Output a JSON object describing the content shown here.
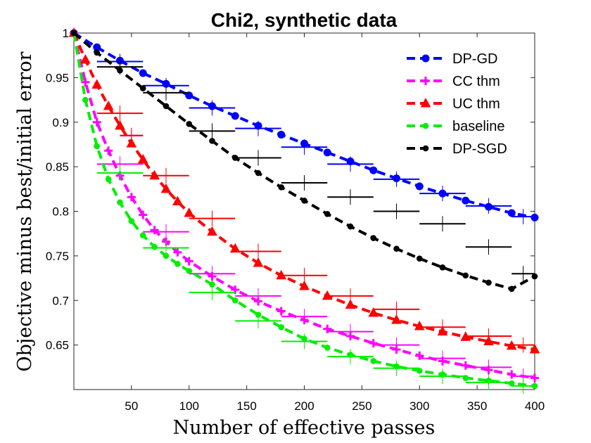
{
  "chart_data": {
    "type": "line",
    "title": "Chi2, synthetic data",
    "xlabel": "Number of effective passes",
    "ylabel": "Objective minus best/initial error",
    "xlim": [
      0,
      400
    ],
    "ylim": [
      0.6,
      1.0
    ],
    "xticks": [
      50,
      100,
      150,
      200,
      250,
      300,
      350,
      400
    ],
    "yticks": [
      0.65,
      0.7,
      0.75,
      0.8,
      0.85,
      0.9,
      0.95,
      1
    ],
    "xtick_labels": [
      "50",
      "100",
      "150",
      "200",
      "250",
      "300",
      "350",
      "400"
    ],
    "ytick_labels": [
      "0.65",
      "0.7",
      "0.75",
      "0.8",
      "0.85",
      "0.9",
      "0.95",
      "1"
    ],
    "legend_position": "top-right",
    "series": [
      {
        "name": "DP-GD",
        "color": "#0000ff",
        "marker": "circle",
        "x": [
          0,
          20,
          40,
          60,
          80,
          100,
          120,
          140,
          160,
          180,
          200,
          220,
          240,
          260,
          280,
          300,
          320,
          340,
          360,
          380,
          400
        ],
        "y": [
          1.0,
          0.984,
          0.969,
          0.955,
          0.943,
          0.93,
          0.918,
          0.907,
          0.896,
          0.886,
          0.876,
          0.866,
          0.856,
          0.846,
          0.837,
          0.828,
          0.82,
          0.812,
          0.805,
          0.798,
          0.793
        ],
        "bars": [
          [
            20,
            60,
            0.968
          ],
          [
            60,
            100,
            0.941
          ],
          [
            100,
            140,
            0.916
          ],
          [
            140,
            180,
            0.893
          ],
          [
            180,
            220,
            0.872
          ],
          [
            220,
            260,
            0.853
          ],
          [
            260,
            300,
            0.836
          ],
          [
            300,
            340,
            0.82
          ],
          [
            340,
            380,
            0.806
          ],
          [
            380,
            400,
            0.794
          ]
        ]
      },
      {
        "name": "CC thm",
        "color": "#ff00ff",
        "marker": "plus",
        "x": [
          0,
          10,
          20,
          30,
          40,
          50,
          60,
          70,
          80,
          90,
          100,
          120,
          140,
          160,
          180,
          200,
          220,
          240,
          260,
          280,
          300,
          320,
          340,
          360,
          380,
          400
        ],
        "y": [
          1.0,
          0.945,
          0.9,
          0.868,
          0.84,
          0.816,
          0.796,
          0.779,
          0.766,
          0.754,
          0.744,
          0.727,
          0.712,
          0.699,
          0.688,
          0.678,
          0.668,
          0.66,
          0.652,
          0.645,
          0.638,
          0.632,
          0.627,
          0.622,
          0.617,
          0.613
        ],
        "bars": [
          [
            20,
            60,
            0.853
          ],
          [
            40,
            60,
            0.885
          ],
          [
            60,
            100,
            0.777
          ],
          [
            100,
            140,
            0.73
          ],
          [
            140,
            180,
            0.705
          ],
          [
            180,
            220,
            0.682
          ],
          [
            220,
            260,
            0.665
          ],
          [
            260,
            300,
            0.65
          ],
          [
            300,
            340,
            0.635
          ],
          [
            340,
            380,
            0.625
          ],
          [
            380,
            400,
            0.615
          ]
        ]
      },
      {
        "name": "UC thm",
        "color": "#ff0000",
        "marker": "triangle",
        "x": [
          0,
          10,
          20,
          30,
          40,
          50,
          60,
          70,
          80,
          90,
          100,
          120,
          140,
          160,
          180,
          200,
          220,
          240,
          260,
          280,
          300,
          320,
          340,
          360,
          380,
          400
        ],
        "y": [
          1.0,
          0.97,
          0.942,
          0.918,
          0.896,
          0.876,
          0.858,
          0.84,
          0.825,
          0.811,
          0.798,
          0.777,
          0.758,
          0.742,
          0.728,
          0.716,
          0.705,
          0.695,
          0.686,
          0.678,
          0.671,
          0.665,
          0.659,
          0.654,
          0.649,
          0.645
        ],
        "bars": [
          [
            20,
            60,
            0.91
          ],
          [
            40,
            60,
            0.885
          ],
          [
            60,
            100,
            0.84
          ],
          [
            100,
            140,
            0.792
          ],
          [
            140,
            180,
            0.755
          ],
          [
            180,
            220,
            0.728
          ],
          [
            220,
            260,
            0.705
          ],
          [
            260,
            300,
            0.69
          ],
          [
            300,
            340,
            0.67
          ],
          [
            340,
            380,
            0.66
          ],
          [
            380,
            400,
            0.65
          ]
        ]
      },
      {
        "name": "baseline",
        "color": "#00ee00",
        "marker": "dot",
        "x": [
          0,
          10,
          20,
          30,
          40,
          50,
          60,
          70,
          80,
          90,
          100,
          120,
          140,
          160,
          180,
          200,
          220,
          240,
          260,
          280,
          300,
          320,
          340,
          360,
          380,
          400
        ],
        "y": [
          1.0,
          0.925,
          0.873,
          0.836,
          0.81,
          0.789,
          0.773,
          0.76,
          0.75,
          0.741,
          0.733,
          0.718,
          0.7,
          0.684,
          0.67,
          0.657,
          0.647,
          0.639,
          0.632,
          0.626,
          0.621,
          0.617,
          0.613,
          0.61,
          0.607,
          0.604
        ],
        "bars": [
          [
            20,
            60,
            0.843
          ],
          [
            60,
            100,
            0.759
          ],
          [
            100,
            140,
            0.709
          ],
          [
            140,
            180,
            0.677
          ],
          [
            180,
            220,
            0.654
          ],
          [
            220,
            260,
            0.637
          ],
          [
            260,
            300,
            0.624
          ],
          [
            300,
            340,
            0.615
          ],
          [
            340,
            380,
            0.608
          ],
          [
            380,
            400,
            0.604
          ]
        ]
      },
      {
        "name": "DP-SGD",
        "color": "#000000",
        "marker": "dot",
        "x": [
          0,
          20,
          40,
          60,
          80,
          100,
          120,
          140,
          160,
          180,
          200,
          220,
          240,
          260,
          280,
          300,
          320,
          340,
          360,
          380,
          400
        ],
        "y": [
          1.0,
          0.978,
          0.958,
          0.938,
          0.918,
          0.898,
          0.879,
          0.86,
          0.843,
          0.827,
          0.812,
          0.797,
          0.783,
          0.77,
          0.758,
          0.747,
          0.737,
          0.728,
          0.72,
          0.713,
          0.727
        ],
        "bars": [
          [
            20,
            60,
            0.962
          ],
          [
            60,
            100,
            0.933
          ],
          [
            100,
            140,
            0.89
          ],
          [
            140,
            180,
            0.86
          ],
          [
            180,
            220,
            0.832
          ],
          [
            220,
            260,
            0.816
          ],
          [
            260,
            300,
            0.8
          ],
          [
            300,
            340,
            0.786
          ],
          [
            340,
            380,
            0.76
          ],
          [
            380,
            400,
            0.73
          ]
        ]
      }
    ]
  }
}
